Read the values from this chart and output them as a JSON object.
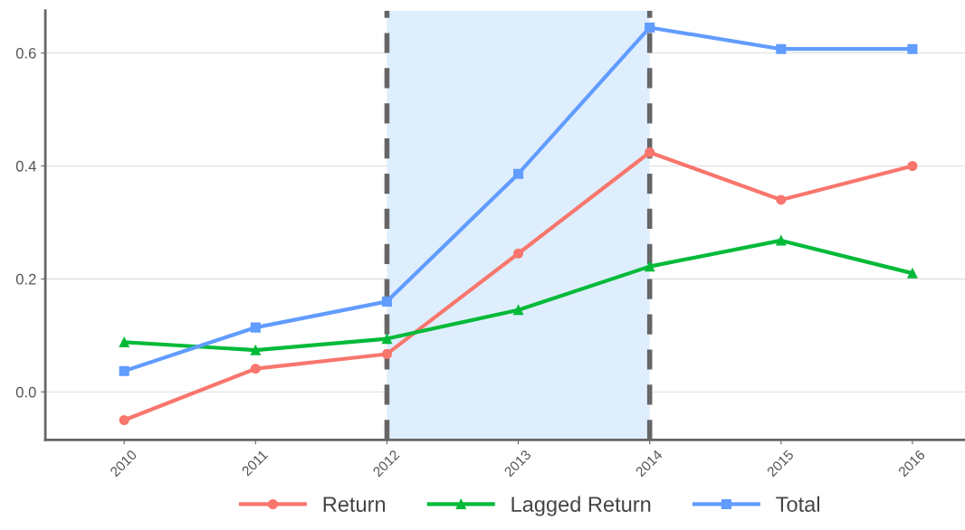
{
  "chart_data": {
    "type": "line",
    "categories": [
      "2010",
      "2011",
      "2012",
      "2013",
      "2014",
      "2015",
      "2016"
    ],
    "series": [
      {
        "name": "Return",
        "color": "#f8766d",
        "marker": "circle",
        "values": [
          -0.05,
          0.041,
          0.067,
          0.245,
          0.424,
          0.34,
          0.4
        ]
      },
      {
        "name": "Lagged Return",
        "color": "#00ba38",
        "marker": "triangle",
        "values": [
          0.088,
          0.074,
          0.094,
          0.145,
          0.222,
          0.268,
          0.21
        ]
      },
      {
        "name": "Total",
        "color": "#619cff",
        "marker": "square",
        "values": [
          0.037,
          0.114,
          0.16,
          0.386,
          0.645,
          0.607,
          0.607
        ]
      }
    ],
    "ylim": [
      -0.085,
      0.675
    ],
    "yticks": [
      {
        "value": 0,
        "label": "0.0"
      },
      0.2,
      0.4,
      0.6
    ],
    "grid": "y",
    "legend": "bottom",
    "line_style": "solid",
    "ref_lines": [
      {
        "axis": "x",
        "value": "2012",
        "color": "#666666",
        "line_style": "dashed"
      },
      {
        "axis": "x",
        "value": "2014",
        "color": "#666666",
        "line_style": "dashed"
      }
    ],
    "bands": [
      {
        "axis": "x",
        "from": "2012",
        "to": "2014",
        "color": "#deeefc"
      }
    ]
  }
}
